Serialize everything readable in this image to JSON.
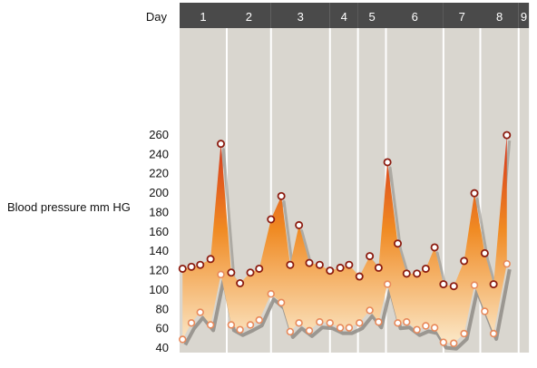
{
  "chart_data": {
    "type": "area",
    "title": "",
    "xlabel": "Day",
    "ylabel": "Blood pressure mm HG",
    "ylim": [
      40,
      260
    ],
    "yticks": [
      40,
      60,
      80,
      100,
      120,
      140,
      160,
      180,
      200,
      220,
      240,
      260
    ],
    "days": [
      {
        "label": "1",
        "start": 0,
        "end": 1.6
      },
      {
        "label": "2",
        "start": 1.6,
        "end": 3.1
      },
      {
        "label": "3",
        "start": 3.1,
        "end": 5.1
      },
      {
        "label": "4",
        "start": 5.1,
        "end": 6.05
      },
      {
        "label": "5",
        "start": 6.05,
        "end": 7.0
      },
      {
        "label": "6",
        "start": 7.0,
        "end": 8.95
      },
      {
        "label": "7",
        "start": 8.95,
        "end": 10.2
      },
      {
        "label": "8",
        "start": 10.2,
        "end": 11.5
      },
      {
        "label": "9",
        "start": 11.5,
        "end": 11.85
      }
    ],
    "series": [
      {
        "values": [
          [
            0.1,
            121
          ],
          [
            0.4,
            123
          ],
          [
            0.7,
            125
          ],
          [
            1.05,
            131
          ],
          [
            1.4,
            250
          ],
          [
            1.75,
            117
          ],
          [
            2.05,
            106
          ],
          [
            2.4,
            117
          ],
          [
            2.7,
            121
          ],
          [
            3.1,
            172
          ],
          [
            3.45,
            196
          ],
          [
            3.75,
            125
          ],
          [
            4.05,
            166
          ],
          [
            4.4,
            127
          ],
          [
            4.75,
            125
          ],
          [
            5.1,
            119
          ],
          [
            5.45,
            122
          ],
          [
            5.75,
            125
          ],
          [
            6.1,
            113
          ],
          [
            6.45,
            134
          ],
          [
            6.75,
            122
          ],
          [
            7.05,
            231
          ],
          [
            7.4,
            147
          ],
          [
            7.7,
            116
          ],
          [
            8.05,
            116
          ],
          [
            8.35,
            121
          ],
          [
            8.65,
            143
          ],
          [
            8.95,
            105
          ],
          [
            9.3,
            103
          ],
          [
            9.65,
            129
          ],
          [
            10.0,
            199
          ],
          [
            10.35,
            137
          ],
          [
            10.65,
            105
          ],
          [
            11.1,
            259
          ]
        ]
      },
      {
        "values": [
          [
            0.1,
            48
          ],
          [
            0.4,
            65
          ],
          [
            0.7,
            76
          ],
          [
            1.05,
            63
          ],
          [
            1.4,
            115
          ],
          [
            1.75,
            63
          ],
          [
            2.05,
            58
          ],
          [
            2.4,
            63
          ],
          [
            2.7,
            68
          ],
          [
            3.1,
            95
          ],
          [
            3.45,
            86
          ],
          [
            3.75,
            56
          ],
          [
            4.05,
            65
          ],
          [
            4.4,
            57
          ],
          [
            4.75,
            66
          ],
          [
            5.1,
            65
          ],
          [
            5.45,
            60
          ],
          [
            5.75,
            60
          ],
          [
            6.1,
            65
          ],
          [
            6.45,
            78
          ],
          [
            6.75,
            66
          ],
          [
            7.05,
            105
          ],
          [
            7.4,
            65
          ],
          [
            7.7,
            66
          ],
          [
            8.05,
            58
          ],
          [
            8.35,
            62
          ],
          [
            8.65,
            60
          ],
          [
            8.95,
            45
          ],
          [
            9.3,
            44
          ],
          [
            9.65,
            54
          ],
          [
            10.0,
            104
          ],
          [
            10.35,
            77
          ],
          [
            10.65,
            54
          ],
          [
            11.1,
            126
          ]
        ]
      }
    ]
  },
  "colors": {
    "header_bg": "#4a4a4a",
    "header_text": "#ffffff",
    "column_bg": "#d9d6cf",
    "column_divider": "#ffffff",
    "area_top": "#d4321c",
    "area_mid": "#f08a22",
    "area_bottom": "#fbe8c8",
    "shadow_line": "#8f8c86",
    "marker_systolic_stroke": "#8c1c10",
    "marker_diastolic_stroke": "#e8895a",
    "marker_fill": "#ffffff",
    "label_text": "#111111"
  }
}
